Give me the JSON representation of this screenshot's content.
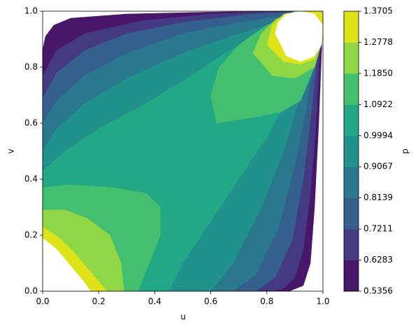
{
  "chart_data": {
    "type": "contourf",
    "x_label": "u",
    "y_label": "v",
    "colorbar_label": "p",
    "xlim": [
      0,
      1
    ],
    "ylim": [
      0,
      1
    ],
    "xticks": [
      {
        "value": 0,
        "label": "0.0"
      },
      0.2,
      0.4,
      0.6,
      0.8,
      {
        "value": 1,
        "label": "1.0"
      }
    ],
    "yticks": [
      {
        "value": 0,
        "label": "0.0"
      },
      0.2,
      0.4,
      0.6,
      0.8,
      {
        "value": 1,
        "label": "1.0"
      }
    ],
    "levels": [
      0.5356,
      0.6283,
      0.7211,
      0.8139,
      0.9067,
      0.9994,
      1.0922,
      {
        "value": 1.185,
        "label": "1.1850"
      },
      1.2778,
      1.3705
    ],
    "colors": [
      "#481769",
      "#443a83",
      "#35608d",
      "#2a788e",
      "#21918c",
      "#22a884",
      "#44bf70",
      "#8fd744",
      "#dde318",
      "#ffffff"
    ],
    "regions": [
      [
        [
          [
            0,
            0
          ],
          [
            0,
            0.86
          ],
          [
            0.01,
            0.91
          ],
          [
            0.04,
            0.95
          ],
          [
            0.1,
            0.975
          ],
          [
            0.3,
            0.99
          ],
          [
            0.6,
            0.997
          ],
          [
            0.85,
            1
          ],
          [
            1,
            1
          ],
          [
            1,
            0.96
          ],
          [
            0.995,
            0.85
          ],
          [
            0.985,
            0.6
          ],
          [
            0.97,
            0.3
          ],
          [
            0.955,
            0.1
          ],
          [
            0.93,
            0.02
          ],
          [
            0.88,
            0
          ]
        ]
      ],
      [
        [
          [
            0,
            0
          ],
          [
            0,
            0.77
          ],
          [
            0.05,
            0.86
          ],
          [
            0.15,
            0.92
          ],
          [
            0.35,
            0.965
          ],
          [
            0.6,
            0.99
          ],
          [
            0.85,
            1
          ],
          [
            0.99,
            1
          ],
          [
            0.99,
            0.9
          ],
          [
            0.975,
            0.6
          ],
          [
            0.955,
            0.35
          ],
          [
            0.93,
            0.15
          ],
          [
            0.9,
            0.05
          ],
          [
            0.86,
            0.01
          ],
          [
            0.82,
            0
          ]
        ]
      ],
      [
        [
          [
            0,
            0
          ],
          [
            0,
            0.69
          ],
          [
            0.05,
            0.78
          ],
          [
            0.15,
            0.86
          ],
          [
            0.3,
            0.92
          ],
          [
            0.5,
            0.96
          ],
          [
            0.75,
            0.99
          ],
          [
            0.97,
            1
          ],
          [
            0.985,
            0.9
          ],
          [
            0.96,
            0.65
          ],
          [
            0.93,
            0.4
          ],
          [
            0.89,
            0.18
          ],
          [
            0.83,
            0.05
          ],
          [
            0.76,
            0
          ]
        ]
      ],
      [
        [
          [
            0,
            0
          ],
          [
            0,
            0.6
          ],
          [
            0.05,
            0.68
          ],
          [
            0.15,
            0.77
          ],
          [
            0.3,
            0.85
          ],
          [
            0.5,
            0.92
          ],
          [
            0.7,
            0.96
          ],
          [
            0.9,
            0.99
          ],
          [
            0.975,
            0.9
          ],
          [
            0.94,
            0.65
          ],
          [
            0.9,
            0.45
          ],
          [
            0.84,
            0.22
          ],
          [
            0.76,
            0.06
          ],
          [
            0.68,
            0
          ]
        ]
      ],
      [
        [
          [
            0,
            0
          ],
          [
            0,
            0.5
          ],
          [
            0.05,
            0.58
          ],
          [
            0.15,
            0.67
          ],
          [
            0.3,
            0.76
          ],
          [
            0.5,
            0.85
          ],
          [
            0.7,
            0.92
          ],
          [
            0.88,
            0.97
          ],
          [
            0.96,
            0.9
          ],
          [
            0.92,
            0.7
          ],
          [
            0.86,
            0.5
          ],
          [
            0.78,
            0.3
          ],
          [
            0.68,
            0.1
          ],
          [
            0.6,
            0
          ]
        ]
      ],
      [
        [
          [
            0,
            0
          ],
          [
            0,
            0.43
          ],
          [
            0.08,
            0.5
          ],
          [
            0.2,
            0.58
          ],
          [
            0.35,
            0.66
          ],
          [
            0.5,
            0.75
          ],
          [
            0.65,
            0.85
          ],
          [
            0.8,
            0.93
          ],
          [
            0.95,
            0.98
          ],
          [
            0.93,
            0.85
          ],
          [
            0.88,
            0.7
          ],
          [
            0.8,
            0.55
          ],
          [
            0.7,
            0.4
          ],
          [
            0.6,
            0.25
          ],
          [
            0.5,
            0.1
          ],
          [
            0.45,
            0
          ]
        ]
      ],
      [
        [
          [
            0,
            0
          ],
          [
            0,
            0.37
          ],
          [
            0.1,
            0.38
          ],
          [
            0.25,
            0.37
          ],
          [
            0.37,
            0.35
          ],
          [
            0.42,
            0.3
          ],
          [
            0.42,
            0.2
          ],
          [
            0.38,
            0.1
          ],
          [
            0.34,
            0
          ]
        ],
        [
          [
            0.62,
            0.6
          ],
          [
            0.6,
            0.7
          ],
          [
            0.63,
            0.8
          ],
          [
            0.7,
            0.88
          ],
          [
            0.8,
            0.95
          ],
          [
            0.95,
            1
          ],
          [
            1,
            1
          ],
          [
            1,
            0.95
          ],
          [
            0.97,
            0.8
          ],
          [
            0.92,
            0.68
          ],
          [
            0.85,
            0.64
          ],
          [
            0.75,
            0.62
          ]
        ]
      ],
      [
        [
          [
            0,
            0
          ],
          [
            0,
            0.29
          ],
          [
            0.08,
            0.29
          ],
          [
            0.16,
            0.26
          ],
          [
            0.24,
            0.2
          ],
          [
            0.28,
            0.1
          ],
          [
            0.29,
            0
          ]
        ],
        [
          [
            0.75,
            0.85
          ],
          [
            0.78,
            0.92
          ],
          [
            0.83,
            0.97
          ],
          [
            0.9,
            1
          ],
          [
            1,
            1
          ],
          [
            1,
            0.9
          ],
          [
            0.97,
            0.8
          ],
          [
            0.9,
            0.76
          ],
          [
            0.82,
            0.77
          ]
        ]
      ],
      [
        [
          [
            0,
            0
          ],
          [
            0,
            0.23
          ],
          [
            0.06,
            0.19
          ],
          [
            0.12,
            0.13
          ],
          [
            0.17,
            0.07
          ],
          [
            0.23,
            0
          ]
        ],
        [
          [
            0.8,
            0.88
          ],
          [
            0.82,
            0.95
          ],
          [
            0.86,
            0.99
          ],
          [
            0.93,
            1
          ],
          [
            1,
            1
          ],
          [
            1,
            0.92
          ],
          [
            0.97,
            0.83
          ],
          [
            0.92,
            0.81
          ],
          [
            0.86,
            0.82
          ]
        ]
      ],
      [
        [
          [
            0,
            0
          ],
          [
            0,
            0.19
          ],
          [
            0.05,
            0.15
          ],
          [
            0.1,
            0.09
          ],
          [
            0.15,
            0.03
          ],
          [
            0.17,
            0
          ]
        ],
        [
          [
            0.83,
            0.92
          ],
          [
            0.84,
            0.96
          ],
          [
            0.87,
            0.99
          ],
          [
            0.92,
            1
          ],
          [
            0.97,
            0.99
          ],
          [
            1,
            0.95
          ],
          [
            0.995,
            0.88
          ],
          [
            0.97,
            0.84
          ],
          [
            0.92,
            0.82
          ],
          [
            0.87,
            0.84
          ]
        ]
      ]
    ]
  }
}
